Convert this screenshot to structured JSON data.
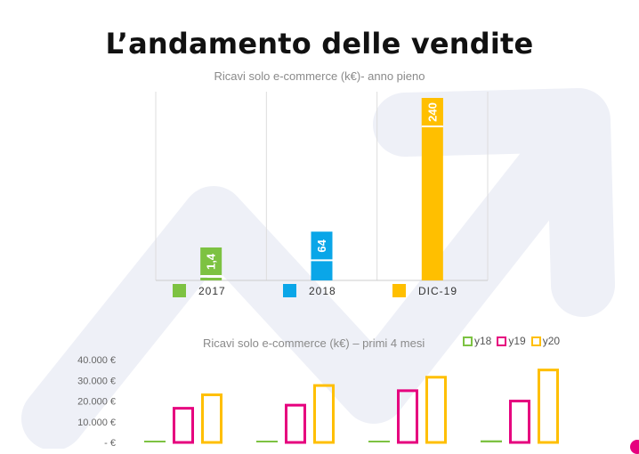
{
  "header": {
    "title": "L’andamento delle vendite"
  },
  "colors": {
    "green": "#7dc242",
    "blue": "#0aa6e8",
    "yellow": "#ffbf00",
    "pink": "#e6007e",
    "arrow_bg": "#eef0f7"
  },
  "chart_data": [
    {
      "type": "bar",
      "title": "Ricavi solo e-commerce (k€)- anno pieno",
      "categories": [
        "2017",
        "2018",
        "DIC-19"
      ],
      "values": [
        1.4,
        64,
        240
      ],
      "value_labels": [
        "1,4",
        "64",
        "240"
      ],
      "legend": [
        "2017",
        "2018",
        "DIC-19"
      ],
      "legend_position": "bottom",
      "grid": true,
      "ylim": [
        0,
        240
      ]
    },
    {
      "type": "bar",
      "title": "Ricavi solo e-commerce (k€) – primi 4 mesi",
      "categories": [
        "",
        "",
        "",
        ""
      ],
      "series": [
        {
          "name": "y18",
          "values": [
            500,
            500,
            500,
            1000
          ]
        },
        {
          "name": "y19",
          "values": [
            16500,
            18000,
            25000,
            20000
          ]
        },
        {
          "name": "y20",
          "values": [
            23000,
            27500,
            31500,
            35000
          ]
        }
      ],
      "y_ticks": [
        "40.000 €",
        "30.000 €",
        "20.000 €",
        "10.000 €",
        "- €"
      ],
      "y_tick_values": [
        40000,
        30000,
        20000,
        10000,
        0
      ],
      "ylim": [
        0,
        40000
      ],
      "legend_position": "top-right"
    }
  ]
}
